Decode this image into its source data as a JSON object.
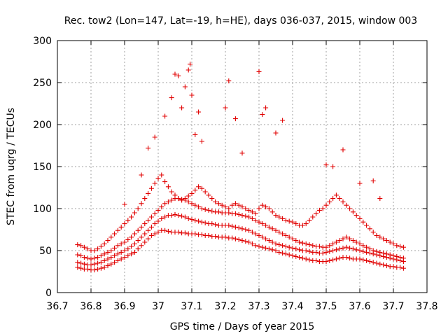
{
  "chart_data": {
    "type": "scatter",
    "title": "Rec. tow2 (Lon=147, Lat=-19, h=HE), days 036-037, 2015, window 003",
    "xlabel": "GPS time / Days of year 2015",
    "ylabel": "STEC from uqrg / TECUs",
    "xlim": [
      36.7,
      37.8
    ],
    "ylim": [
      0,
      300
    ],
    "xticks": [
      "36.7",
      "36.8",
      "36.9",
      "37",
      "37.1",
      "37.2",
      "37.3",
      "37.4",
      "37.5",
      "37.6",
      "37.7",
      "37.8"
    ],
    "yticks": [
      "0",
      "50",
      "100",
      "150",
      "200",
      "250",
      "300"
    ],
    "grid": true,
    "legend": "none",
    "marker": "plus",
    "color": "#e00000",
    "series": [
      {
        "x": [
          36.76,
          36.77,
          36.78,
          36.79,
          36.8,
          36.81,
          36.82,
          36.83,
          36.84,
          36.85,
          36.86,
          36.87,
          36.88,
          36.89,
          36.9,
          36.91,
          36.92,
          36.93,
          36.94,
          36.95,
          36.96,
          36.97,
          36.98,
          36.99,
          37.0,
          37.01,
          37.02,
          37.03,
          37.04,
          37.05,
          37.06,
          37.07,
          37.08,
          37.09,
          37.1,
          37.11,
          37.12,
          37.13,
          37.14,
          37.15,
          37.16,
          37.17,
          37.18,
          37.19,
          37.2,
          37.21,
          37.22,
          37.23,
          37.24,
          37.25,
          37.26,
          37.27,
          37.28,
          37.29,
          37.3,
          37.31,
          37.32,
          37.33,
          37.34,
          37.35,
          37.36,
          37.37,
          37.38,
          37.39,
          37.4,
          37.41,
          37.42,
          37.43,
          37.44,
          37.45,
          37.46,
          37.47,
          37.48,
          37.49,
          37.5,
          37.51,
          37.52,
          37.53,
          37.54,
          37.55,
          37.56,
          37.57,
          37.58,
          37.59,
          37.6,
          37.61,
          37.62,
          37.63,
          37.64,
          37.65,
          37.66,
          37.67,
          37.68,
          37.69,
          37.7,
          37.71,
          37.72,
          37.73
        ],
        "y": [
          30,
          29,
          28,
          28,
          27,
          27,
          28,
          29,
          30,
          32,
          34,
          36,
          38,
          40,
          42,
          44,
          46,
          48,
          52,
          56,
          60,
          64,
          68,
          70,
          72,
          74,
          74,
          73,
          72,
          72,
          72,
          71,
          71,
          70,
          70,
          70,
          69,
          69,
          68,
          68,
          67,
          67,
          66,
          66,
          66,
          65,
          65,
          64,
          63,
          62,
          61,
          60,
          58,
          56,
          55,
          54,
          53,
          52,
          51,
          50,
          48,
          47,
          46,
          45,
          44,
          43,
          42,
          41,
          40,
          39,
          38,
          38,
          37,
          37,
          37,
          38,
          39,
          40,
          41,
          42,
          42,
          41,
          40,
          40,
          40,
          39,
          38,
          37,
          36,
          35,
          34,
          33,
          32,
          31,
          31,
          30,
          30,
          29
        ]
      },
      {
        "x": [
          36.76,
          36.77,
          36.78,
          36.79,
          36.8,
          36.81,
          36.82,
          36.83,
          36.84,
          36.85,
          36.86,
          36.87,
          36.88,
          36.89,
          36.9,
          36.91,
          36.92,
          36.93,
          36.94,
          36.95,
          36.96,
          36.97,
          36.98,
          36.99,
          37.0,
          37.01,
          37.02,
          37.03,
          37.04,
          37.05,
          37.06,
          37.07,
          37.08,
          37.09,
          37.1,
          37.11,
          37.12,
          37.13,
          37.14,
          37.15,
          37.16,
          37.17,
          37.18,
          37.19,
          37.2,
          37.21,
          37.22,
          37.23,
          37.24,
          37.25,
          37.26,
          37.27,
          37.28,
          37.29,
          37.3,
          37.31,
          37.32,
          37.33,
          37.34,
          37.35,
          37.36,
          37.37,
          37.38,
          37.39,
          37.4,
          37.41,
          37.42,
          37.43,
          37.44,
          37.45,
          37.46,
          37.47,
          37.48,
          37.49,
          37.5,
          37.51,
          37.52,
          37.53,
          37.54,
          37.55,
          37.56,
          37.57,
          37.58,
          37.59,
          37.6,
          37.61,
          37.62,
          37.63,
          37.64,
          37.65,
          37.66,
          37.67,
          37.68,
          37.69,
          37.7,
          37.71,
          37.72,
          37.73
        ],
        "y": [
          36,
          35,
          34,
          33,
          33,
          34,
          35,
          36,
          38,
          40,
          42,
          44,
          46,
          48,
          50,
          52,
          55,
          58,
          62,
          66,
          70,
          74,
          78,
          82,
          85,
          88,
          90,
          92,
          92,
          93,
          92,
          91,
          90,
          88,
          87,
          86,
          85,
          84,
          83,
          82,
          82,
          81,
          80,
          80,
          80,
          80,
          79,
          78,
          77,
          76,
          75,
          74,
          72,
          70,
          68,
          66,
          64,
          62,
          60,
          58,
          57,
          56,
          55,
          54,
          53,
          52,
          51,
          50,
          50,
          49,
          48,
          48,
          47,
          47,
          48,
          49,
          50,
          51,
          52,
          53,
          54,
          53,
          52,
          51,
          50,
          49,
          48,
          47,
          46,
          45,
          44,
          43,
          42,
          41,
          40,
          39,
          38,
          37
        ]
      },
      {
        "x": [
          36.76,
          36.77,
          36.78,
          36.79,
          36.8,
          36.81,
          36.82,
          36.83,
          36.84,
          36.85,
          36.86,
          36.87,
          36.88,
          36.89,
          36.9,
          36.91,
          36.92,
          36.93,
          36.94,
          36.95,
          36.96,
          36.97,
          36.98,
          36.99,
          37.0,
          37.01,
          37.02,
          37.03,
          37.04,
          37.05,
          37.06,
          37.07,
          37.08,
          37.09,
          37.1,
          37.11,
          37.12,
          37.13,
          37.14,
          37.15,
          37.16,
          37.17,
          37.18,
          37.19,
          37.2,
          37.21,
          37.22,
          37.23,
          37.24,
          37.25,
          37.26,
          37.27,
          37.28,
          37.29,
          37.3,
          37.31,
          37.32,
          37.33,
          37.34,
          37.35,
          37.36,
          37.37,
          37.38,
          37.39,
          37.4,
          37.41,
          37.42,
          37.43,
          37.44,
          37.45,
          37.46,
          37.47,
          37.48,
          37.49,
          37.5,
          37.51,
          37.52,
          37.53,
          37.54,
          37.55,
          37.56,
          37.57,
          37.58,
          37.59,
          37.6,
          37.61,
          37.62,
          37.63,
          37.64,
          37.65,
          37.66,
          37.67,
          37.68,
          37.69,
          37.7,
          37.71,
          37.72,
          37.73
        ],
        "y": [
          45,
          44,
          42,
          41,
          40,
          41,
          42,
          44,
          46,
          48,
          50,
          53,
          56,
          58,
          60,
          63,
          66,
          70,
          74,
          78,
          82,
          86,
          90,
          94,
          98,
          102,
          106,
          108,
          110,
          112,
          112,
          111,
          110,
          108,
          106,
          104,
          102,
          100,
          99,
          98,
          97,
          96,
          96,
          95,
          95,
          95,
          94,
          94,
          93,
          92,
          91,
          90,
          88,
          86,
          84,
          82,
          80,
          78,
          76,
          74,
          72,
          70,
          68,
          66,
          64,
          62,
          60,
          59,
          58,
          57,
          56,
          55,
          55,
          54,
          54,
          56,
          58,
          60,
          62,
          64,
          66,
          64,
          62,
          60,
          58,
          56,
          54,
          52,
          50,
          49,
          48,
          47,
          46,
          45,
          44,
          43,
          42,
          41
        ]
      },
      {
        "x": [
          36.76,
          36.77,
          36.78,
          36.79,
          36.8,
          36.81,
          36.82,
          36.83,
          36.84,
          36.85,
          36.86,
          36.87,
          36.88,
          36.89,
          36.9,
          36.91,
          36.92,
          36.93,
          36.94,
          36.95,
          36.96,
          36.97,
          36.98,
          36.99,
          37.0,
          37.01,
          37.02,
          37.03,
          37.04,
          37.05,
          37.06,
          37.07,
          37.08,
          37.09,
          37.1,
          37.11,
          37.12,
          37.13,
          37.14,
          37.15,
          37.16,
          37.17,
          37.18,
          37.19,
          37.2,
          37.21,
          37.22,
          37.23,
          37.24,
          37.25,
          37.26,
          37.27,
          37.28,
          37.29,
          37.3,
          37.31,
          37.32,
          37.33,
          37.34,
          37.35,
          37.36,
          37.37,
          37.38,
          37.39,
          37.4,
          37.41,
          37.42,
          37.43,
          37.44,
          37.45,
          37.46,
          37.47,
          37.48,
          37.49,
          37.5,
          37.51,
          37.52,
          37.53,
          37.54,
          37.55,
          37.56,
          37.57,
          37.58,
          37.59,
          37.6,
          37.61,
          37.62,
          37.63,
          37.64,
          37.65,
          37.66,
          37.67,
          37.68,
          37.69,
          37.7,
          37.71,
          37.72,
          37.73
        ],
        "y": [
          57,
          56,
          54,
          52,
          50,
          50,
          52,
          55,
          58,
          62,
          66,
          70,
          74,
          78,
          82,
          86,
          90,
          95,
          100,
          106,
          112,
          118,
          124,
          130,
          136,
          140,
          132,
          126,
          120,
          116,
          112,
          110,
          112,
          115,
          118,
          122,
          126,
          124,
          120,
          116,
          112,
          108,
          106,
          104,
          102,
          100,
          104,
          106,
          104,
          102,
          100,
          98,
          96,
          94,
          100,
          104,
          102,
          100,
          96,
          92,
          90,
          88,
          86,
          85,
          84,
          82,
          80,
          80,
          82,
          86,
          90,
          94,
          98,
          100,
          104,
          108,
          112,
          116,
          112,
          108,
          104,
          100,
          96,
          92,
          88,
          84,
          80,
          76,
          72,
          68,
          66,
          64,
          62,
          60,
          58,
          56,
          55,
          54
        ]
      },
      {
        "x": [
          36.9,
          36.95,
          36.97,
          36.99,
          37.02,
          37.04,
          37.05,
          37.06,
          37.07,
          37.08,
          37.09,
          37.095,
          37.1,
          37.11,
          37.12,
          37.13,
          37.2,
          37.21,
          37.23,
          37.25,
          37.3,
          37.31,
          37.32,
          37.35,
          37.37,
          37.5,
          37.52,
          37.55,
          37.6,
          37.64,
          37.66
        ],
        "y": [
          105,
          140,
          172,
          185,
          210,
          232,
          260,
          258,
          220,
          245,
          265,
          272,
          235,
          188,
          215,
          180,
          220,
          252,
          207,
          166,
          263,
          212,
          220,
          190,
          205,
          152,
          150,
          170,
          130,
          133,
          112
        ]
      }
    ]
  }
}
